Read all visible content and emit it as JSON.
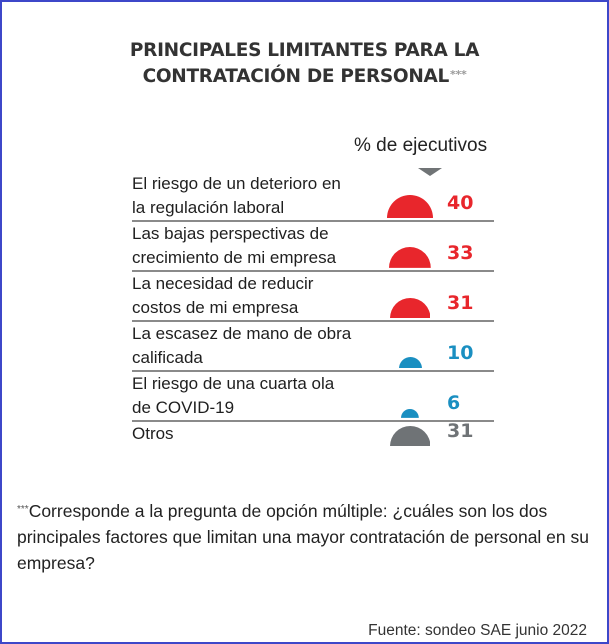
{
  "title": {
    "line1": "PRINCIPALES LIMITANTES PARA LA",
    "line2": "CONTRATACIÓN DE PERSONAL",
    "marker": "***"
  },
  "unit_label": "% de ejecutivos",
  "footnote": {
    "marker": "***",
    "text": "Corresponde a la pregunta de opción múltiple: ¿cuáles son los dos principales factores que limitan una mayor contratación de personal en su empresa?"
  },
  "source": "Fuente: sondeo SAE junio 2022",
  "colors": {
    "high": "#e8262c",
    "low": "#1a8fc1",
    "other": "#6f7376",
    "border": "#3d47c9"
  },
  "chart_data": {
    "type": "bar",
    "title": "PRINCIPALES LIMITANTES PARA LA CONTRATACIÓN DE PERSONAL***",
    "ylabel": "% de ejecutivos",
    "mark": "semicircle (area proportional to value)",
    "categories": [
      "El riesgo de un deterioro en la regulación laboral",
      "Las bajas perspectivas de crecimiento de mi empresa",
      "La necesidad de reducir costos de mi empresa",
      "La escasez de mano de obra calificada",
      "El riesgo de una cuarta ola de COVID-19",
      "Otros"
    ],
    "values": [
      40,
      33,
      31,
      10,
      6,
      31
    ],
    "series_colors": [
      "high",
      "high",
      "high",
      "low",
      "low",
      "other"
    ],
    "rows": [
      {
        "line1": "El riesgo de un deterioro en",
        "line2": "la regulación laboral",
        "value": 40,
        "color": "high"
      },
      {
        "line1": "Las bajas perspectivas de",
        "line2": "crecimiento de mi empresa",
        "value": 33,
        "color": "high"
      },
      {
        "line1": "La necesidad de reducir",
        "line2": "costos de mi empresa",
        "value": 31,
        "color": "high"
      },
      {
        "line1": "La escasez de mano de obra",
        "line2": "calificada",
        "value": 10,
        "color": "low"
      },
      {
        "line1": "El riesgo de una cuarta ola",
        "line2": "de COVID-19",
        "value": 6,
        "color": "low"
      },
      {
        "line1": "Otros",
        "line2": "",
        "value": 31,
        "color": "other"
      }
    ]
  }
}
